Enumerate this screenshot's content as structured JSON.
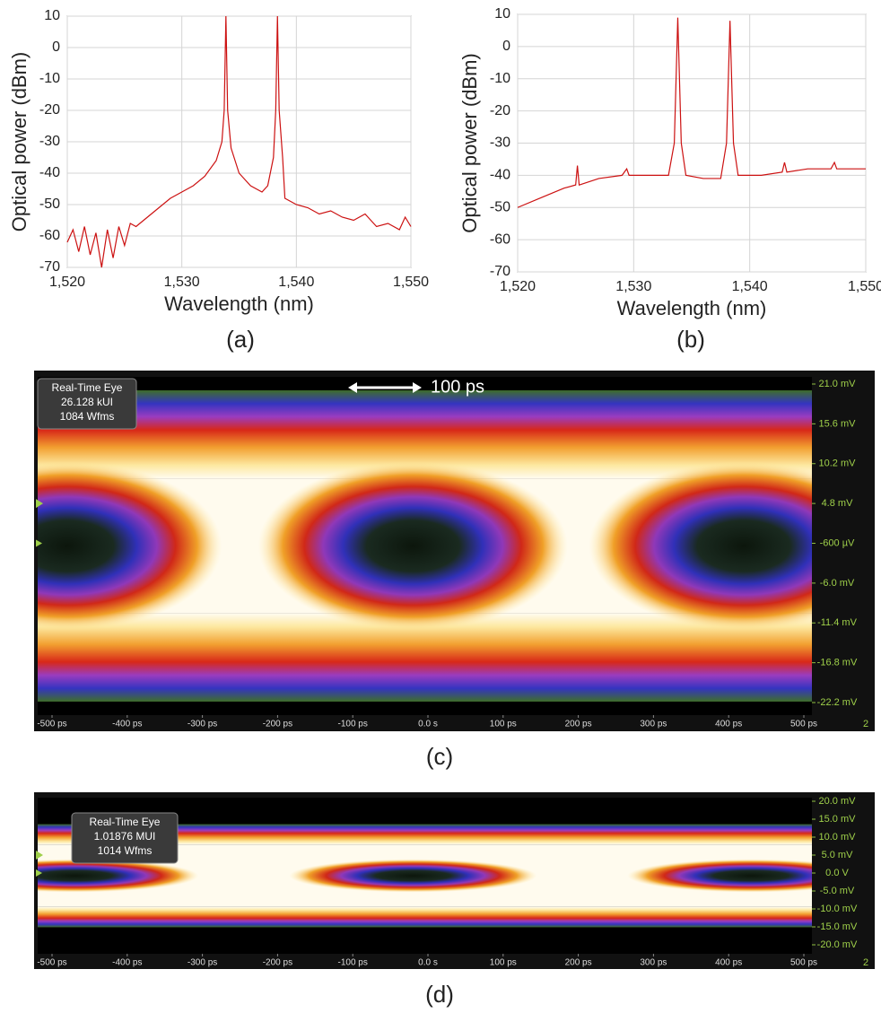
{
  "chart_data": [
    {
      "type": "line",
      "caption": "(a)",
      "xlabel": "Wavelength (nm)",
      "ylabel": "Optical power (dBm)",
      "color": "#cc1111",
      "grid": true,
      "x": [
        1520,
        1520.5,
        1521,
        1521.5,
        1522,
        1522.5,
        1523,
        1523.5,
        1524,
        1524.5,
        1525,
        1525.5,
        1526,
        1527,
        1528,
        1529,
        1530,
        1531,
        1532,
        1533,
        1533.5,
        1533.7,
        1533.85,
        1534,
        1534.3,
        1535,
        1536,
        1537,
        1537.5,
        1538,
        1538.2,
        1538.35,
        1538.5,
        1538.8,
        1539,
        1540,
        1541,
        1542,
        1543,
        1544,
        1545,
        1546,
        1547,
        1548,
        1549,
        1549.5,
        1550
      ],
      "values": [
        -62,
        -58,
        -65,
        -57,
        -66,
        -59,
        -70,
        -58,
        -67,
        -57,
        -63,
        -56,
        -57,
        -54,
        -51,
        -48,
        -46,
        -44,
        -41,
        -36,
        -30,
        -20,
        10,
        -20,
        -32,
        -40,
        -44,
        -46,
        -44,
        -35,
        -20,
        10,
        -20,
        -35,
        -48,
        -50,
        -51,
        -53,
        -52,
        -54,
        -55,
        -53,
        -57,
        -56,
        -58,
        -54,
        -57
      ],
      "xlim": [
        1520,
        1550
      ],
      "ylim": [
        -70,
        10
      ],
      "xticks": [
        {
          "value": 1520,
          "label": "1,520"
        },
        {
          "value": 1530,
          "label": "1,530"
        },
        {
          "value": 1540,
          "label": "1,540"
        },
        {
          "value": 1550,
          "label": "1,550"
        }
      ],
      "yticks": [
        10,
        0,
        -10,
        -20,
        -30,
        -40,
        -50,
        -60,
        -70
      ]
    },
    {
      "type": "line",
      "caption": "(b)",
      "xlabel": "Wavelength (nm)",
      "ylabel": "Optical power (dBm)",
      "color": "#cc1111",
      "grid": true,
      "x": [
        1520,
        1522,
        1524,
        1525,
        1525.15,
        1525.3,
        1527,
        1529,
        1529.4,
        1529.6,
        1531,
        1533,
        1533.5,
        1533.8,
        1534.1,
        1534.5,
        1536,
        1537.5,
        1538,
        1538.3,
        1538.6,
        1539,
        1541,
        1542.8,
        1543,
        1543.2,
        1545,
        1547,
        1547.3,
        1547.5,
        1550
      ],
      "values": [
        -50,
        -47,
        -44,
        -43,
        -37,
        -43,
        -41,
        -40,
        -38,
        -40,
        -40,
        -40,
        -30,
        9,
        -30,
        -40,
        -41,
        -41,
        -30,
        8,
        -30,
        -40,
        -40,
        -39,
        -36,
        -39,
        -38,
        -38,
        -36,
        -38,
        -38
      ],
      "xlim": [
        1520,
        1550
      ],
      "ylim": [
        -70,
        10
      ],
      "xticks": [
        {
          "value": 1520,
          "label": "1,520"
        },
        {
          "value": 1530,
          "label": "1,530"
        },
        {
          "value": 1540,
          "label": "1,540"
        },
        {
          "value": 1550,
          "label": "1,550"
        }
      ],
      "yticks": [
        10,
        0,
        -10,
        -20,
        -30,
        -40,
        -50,
        -60,
        -70
      ]
    },
    {
      "type": "eye",
      "caption": "(c)",
      "info": [
        "Real-Time Eye",
        "26.128 kUI",
        "1084 Wfms"
      ],
      "scale_label": "100 ps",
      "corner_label": "2",
      "xlim": [
        -500,
        500
      ],
      "ylim": [
        -22.2,
        21.0
      ],
      "xticks": [
        {
          "value": -500,
          "label": "-500 ps"
        },
        {
          "value": -400,
          "label": "-400 ps"
        },
        {
          "value": -300,
          "label": "-300 ps"
        },
        {
          "value": -200,
          "label": "-200 ps"
        },
        {
          "value": -100,
          "label": "-100 ps"
        },
        {
          "value": 0,
          "label": "0.0 s"
        },
        {
          "value": 100,
          "label": "100 ps"
        },
        {
          "value": 200,
          "label": "200 ps"
        },
        {
          "value": 300,
          "label": "300 ps"
        },
        {
          "value": 400,
          "label": "400 ps"
        },
        {
          "value": 500,
          "label": "500 ps"
        }
      ],
      "yticks": [
        {
          "value": 21.0,
          "label": "21.0 mV"
        },
        {
          "value": 15.6,
          "label": "15.6 mV"
        },
        {
          "value": 10.2,
          "label": "10.2 mV"
        },
        {
          "value": 4.8,
          "label": "4.8 mV"
        },
        {
          "value": -0.6,
          "label": "-600 µV"
        },
        {
          "value": -6.0,
          "label": "-6.0 mV"
        },
        {
          "value": -11.4,
          "label": "-11.4 mV"
        },
        {
          "value": -16.8,
          "label": "-16.8 mV"
        },
        {
          "value": -22.2,
          "label": "-22.2 mV"
        }
      ]
    },
    {
      "type": "eye",
      "caption": "(d)",
      "info": [
        "Real-Time Eye",
        "1.01876 MUI",
        "1014 Wfms"
      ],
      "corner_label": "2",
      "xlim": [
        -500,
        500
      ],
      "ylim": [
        -20.0,
        20.0
      ],
      "xticks": [
        {
          "value": -500,
          "label": "-500 ps"
        },
        {
          "value": -400,
          "label": "-400 ps"
        },
        {
          "value": -300,
          "label": "-300 ps"
        },
        {
          "value": -200,
          "label": "-200 ps"
        },
        {
          "value": -100,
          "label": "-100 ps"
        },
        {
          "value": 0,
          "label": "0.0 s"
        },
        {
          "value": 100,
          "label": "100 ps"
        },
        {
          "value": 200,
          "label": "200 ps"
        },
        {
          "value": 300,
          "label": "300 ps"
        },
        {
          "value": 400,
          "label": "400 ps"
        },
        {
          "value": 500,
          "label": "500 ps"
        }
      ],
      "yticks": [
        {
          "value": 20.0,
          "label": "20.0 mV"
        },
        {
          "value": 15.0,
          "label": "15.0 mV"
        },
        {
          "value": 10.0,
          "label": "10.0 mV"
        },
        {
          "value": 5.0,
          "label": "5.0 mV"
        },
        {
          "value": 0.0,
          "label": "0.0 V"
        },
        {
          "value": -5.0,
          "label": "-5.0 mV"
        },
        {
          "value": -10.0,
          "label": "-10.0 mV"
        },
        {
          "value": -15.0,
          "label": "-15.0 mV"
        },
        {
          "value": -20.0,
          "label": "-20.0 mV"
        }
      ]
    }
  ]
}
